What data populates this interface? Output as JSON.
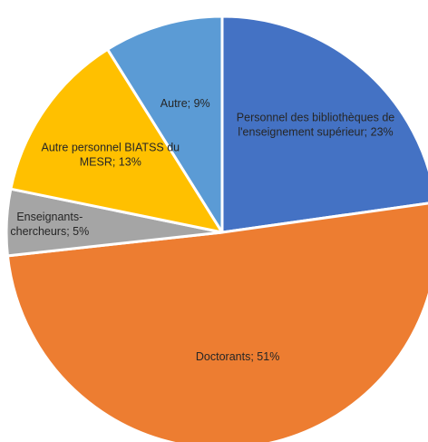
{
  "chart_data": {
    "type": "pie",
    "title": "",
    "slices": [
      {
        "name": "Personnel des bibliothèques de l'enseignement supérieur",
        "value": 23,
        "label_lines": [
          "Personnel des bibliothèques de",
          "l'enseignement supérieur; 23%"
        ],
        "color": "#4472c4",
        "label_color": "#ffffff"
      },
      {
        "name": "Doctorants",
        "value": 51,
        "label_lines": [
          "Doctorants; 51%"
        ],
        "color": "#ed7d31",
        "label_color": "#262626"
      },
      {
        "name": "Enseignants-chercheurs",
        "value": 5,
        "label_lines": [
          "Enseignants-",
          "chercheurs; 5%"
        ],
        "color": "#a5a5a5",
        "label_color": "#262626"
      },
      {
        "name": "Autre personnel BIATSS du MESR",
        "value": 13,
        "label_lines": [
          "Autre personnel BIATSS du",
          "MESR; 13%"
        ],
        "color": "#ffc000",
        "label_color": "#262626"
      },
      {
        "name": "Autre",
        "value": 9,
        "label_lines": [
          "Autre; 9%"
        ],
        "color": "#5b9bd5",
        "label_color": "#262626"
      }
    ],
    "start_angle_deg": 0,
    "direction": "clockwise",
    "legend": "none"
  }
}
